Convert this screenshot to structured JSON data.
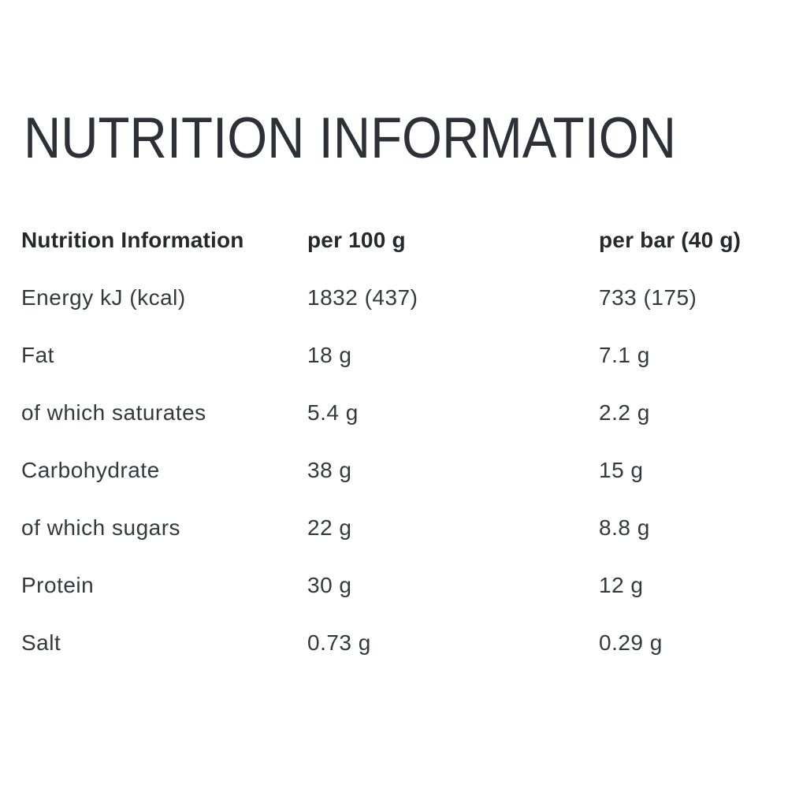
{
  "page_title": "NUTRITION INFORMATION",
  "table": {
    "headers": [
      "Nutrition Information",
      "per 100 g",
      "per bar (40 g)"
    ],
    "rows": [
      {
        "label": "Energy kJ (kcal)",
        "per_100g": "1832 (437)",
        "per_bar": "733 (175)"
      },
      {
        "label": "Fat",
        "per_100g": "18 g",
        "per_bar": "7.1 g"
      },
      {
        "label": "of which saturates",
        "per_100g": "5.4 g",
        "per_bar": "2.2 g"
      },
      {
        "label": "Carbohydrate",
        "per_100g": "38 g",
        "per_bar": "15 g"
      },
      {
        "label": "of which sugars",
        "per_100g": "22 g",
        "per_bar": "8.8 g"
      },
      {
        "label": "Protein",
        "per_100g": "30 g",
        "per_bar": "12 g"
      },
      {
        "label": "Salt",
        "per_100g": "0.73 g",
        "per_bar": "0.29 g"
      }
    ]
  },
  "colors": {
    "background": "#ffffff",
    "title_text": "#2d3036",
    "header_text": "#26282e",
    "body_text": "#35383d"
  }
}
